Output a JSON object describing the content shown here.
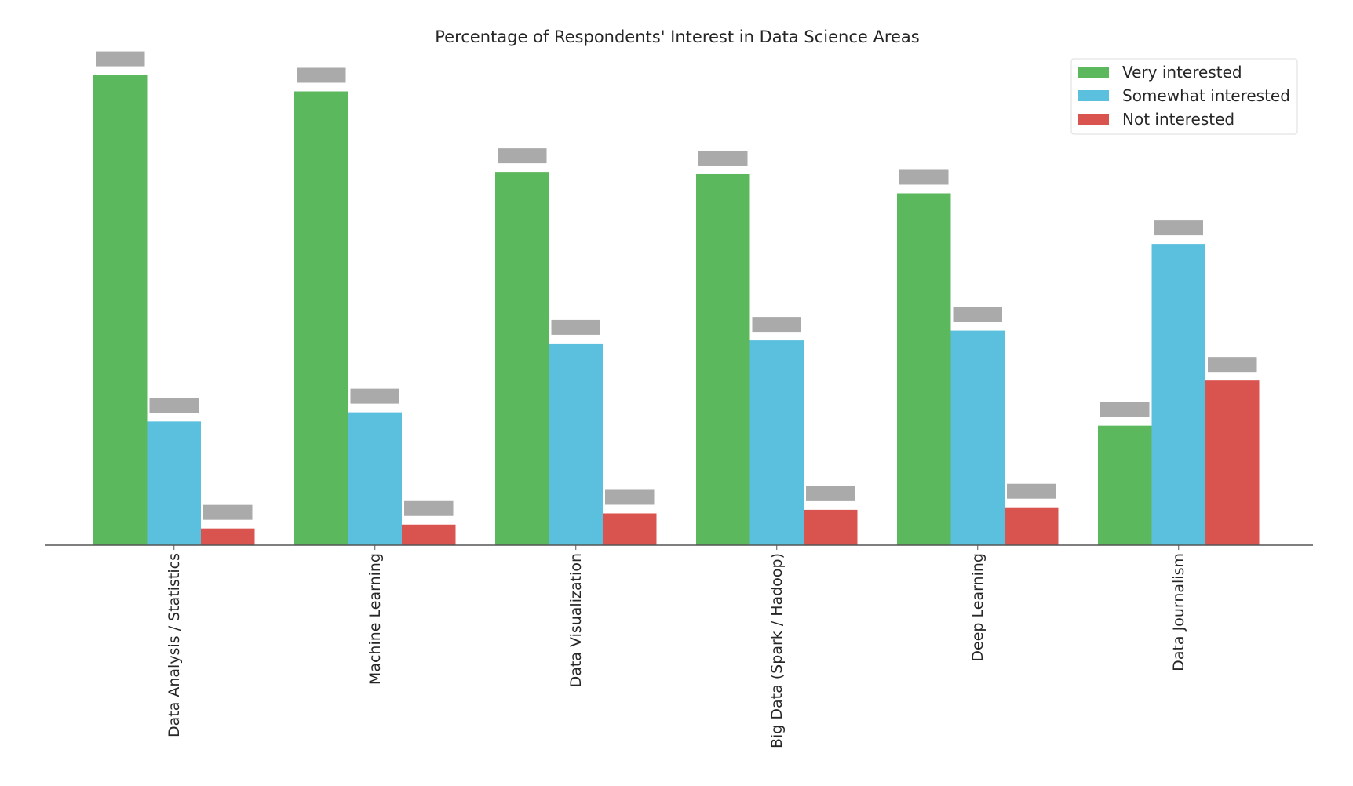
{
  "chart_data": {
    "type": "bar",
    "title": "Percentage of Respondents' Interest in Data Science Areas",
    "xlabel": "",
    "ylabel": "",
    "ylim": [
      0,
      80
    ],
    "grid": false,
    "legend_position": "top-right",
    "categories": [
      "Data Analysis / Statistics",
      "Machine Learning",
      "Data Visualization",
      "Big Data (Spark / Hadoop)",
      "Deep Learning",
      "Data Journalism"
    ],
    "series": [
      {
        "name": "Very interested",
        "color": "#5cb85c",
        "values": [
          75.59,
          72.95,
          60.01,
          59.65,
          56.56,
          19.21
        ]
      },
      {
        "name": "Somewhat interested",
        "color": "#5bc0de",
        "values": [
          19.88,
          21.36,
          32.42,
          32.9,
          34.48,
          48.41
        ]
      },
      {
        "name": "Not interested",
        "color": "#d9534f",
        "values": [
          2.69,
          3.31,
          5.11,
          5.69,
          6.09,
          26.46
        ]
      }
    ],
    "data_labels": "redacted (gray boxes)",
    "label_box_color": "#aaaaaa"
  }
}
